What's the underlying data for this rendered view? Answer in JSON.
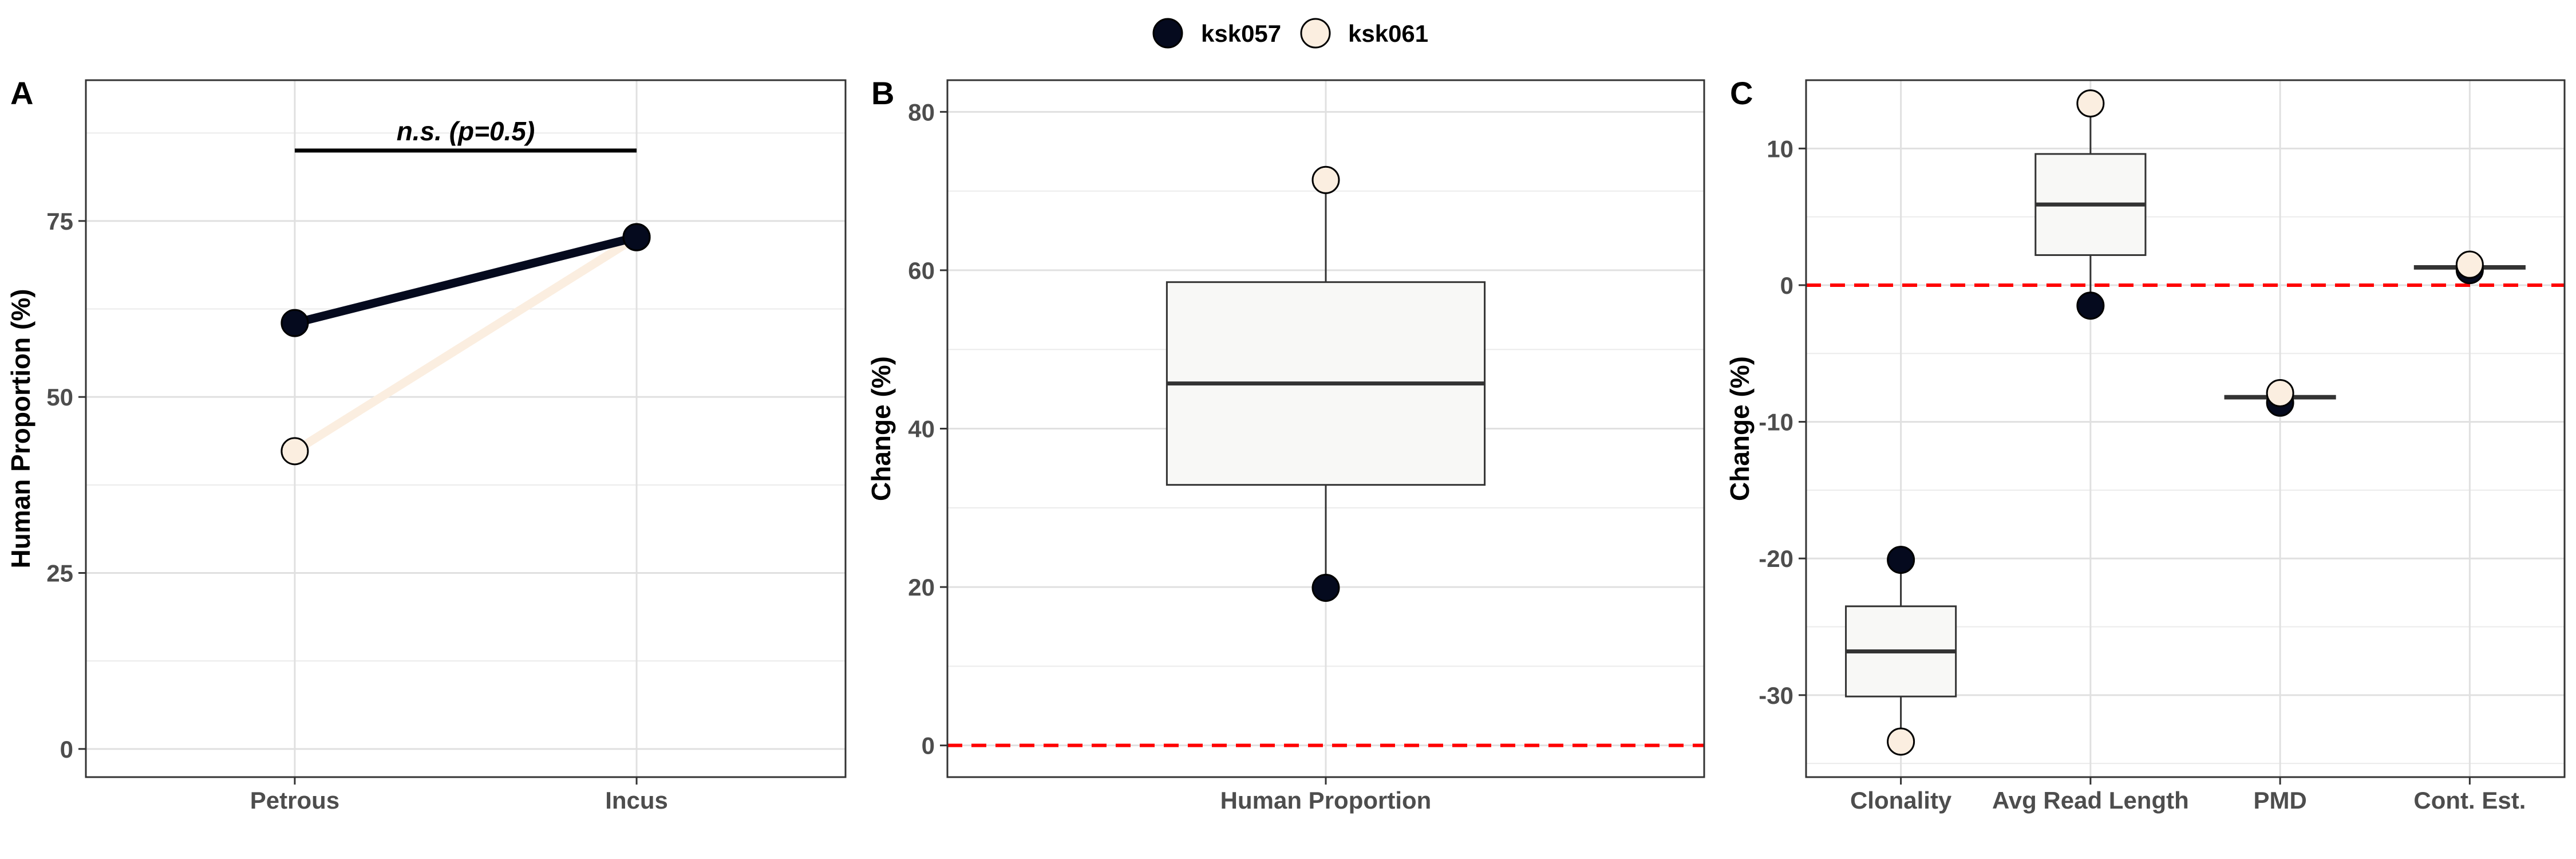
{
  "legend": {
    "entries": [
      {
        "label": "ksk057",
        "color": "#050a1e"
      },
      {
        "label": "ksk061",
        "color": "#fbeee0"
      }
    ]
  },
  "chart_data": [
    {
      "panel": "A",
      "type": "line",
      "categories": [
        "Petrous",
        "Incus"
      ],
      "series": [
        {
          "name": "ksk057",
          "values": [
            60.5,
            72.7
          ],
          "color": "#050a1e"
        },
        {
          "name": "ksk061",
          "values": [
            42.3,
            72.7
          ],
          "color": "#fbeee0"
        }
      ],
      "ylabel": "Human Proportion (%)",
      "xlabel": "",
      "ylim": [
        -4,
        95
      ],
      "yticks": [
        0,
        25,
        50,
        75
      ],
      "grid": true,
      "annotation": {
        "text": "n.s. (p=0.5)",
        "y": 85
      }
    },
    {
      "panel": "B",
      "type": "box",
      "categories": [
        "Human Proportion"
      ],
      "boxes": [
        {
          "q1": 32.9,
          "median": 45.7,
          "q3": 58.5,
          "whisker_low": 19.9,
          "whisker_high": 71.4
        }
      ],
      "points": [
        {
          "category": "Human Proportion",
          "series": "ksk057",
          "value": 19.9
        },
        {
          "category": "Human Proportion",
          "series": "ksk061",
          "value": 71.4
        }
      ],
      "ylabel": "Change (%)",
      "xlabel": "",
      "ylim": [
        -4,
        84
      ],
      "yticks": [
        0,
        20,
        40,
        60,
        80
      ],
      "reference_line": 0,
      "grid": true
    },
    {
      "panel": "C",
      "type": "box",
      "categories": [
        "Clonality",
        "Avg Read Length",
        "PMD",
        "Cont. Est."
      ],
      "boxes": [
        {
          "q1": -30.1,
          "median": -26.8,
          "q3": -23.5,
          "whisker_low": -33.4,
          "whisker_high": -20.1
        },
        {
          "q1": 2.2,
          "median": 5.9,
          "q3": 9.6,
          "whisker_low": -1.5,
          "whisker_high": 13.3
        },
        {
          "q1": -8.3,
          "median": -8.2,
          "q3": -8.1,
          "whisker_low": -8.6,
          "whisker_high": -7.9
        },
        {
          "q1": 1.2,
          "median": 1.3,
          "q3": 1.4,
          "whisker_low": 1.1,
          "whisker_high": 1.5
        }
      ],
      "points": [
        {
          "category": "Clonality",
          "series": "ksk057",
          "value": -20.1
        },
        {
          "category": "Clonality",
          "series": "ksk061",
          "value": -33.4
        },
        {
          "category": "Avg Read Length",
          "series": "ksk057",
          "value": -1.5
        },
        {
          "category": "Avg Read Length",
          "series": "ksk061",
          "value": 13.3
        },
        {
          "category": "PMD",
          "series": "ksk057",
          "value": -8.6
        },
        {
          "category": "PMD",
          "series": "ksk061",
          "value": -7.9
        },
        {
          "category": "Cont. Est.",
          "series": "ksk057",
          "value": 1.1
        },
        {
          "category": "Cont. Est.",
          "series": "ksk061",
          "value": 1.5
        }
      ],
      "ylabel": "Change (%)",
      "xlabel": "",
      "ylim": [
        -36,
        15
      ],
      "yticks": [
        -30,
        -20,
        -10,
        0,
        10
      ],
      "reference_line": 0,
      "grid": true
    }
  ]
}
